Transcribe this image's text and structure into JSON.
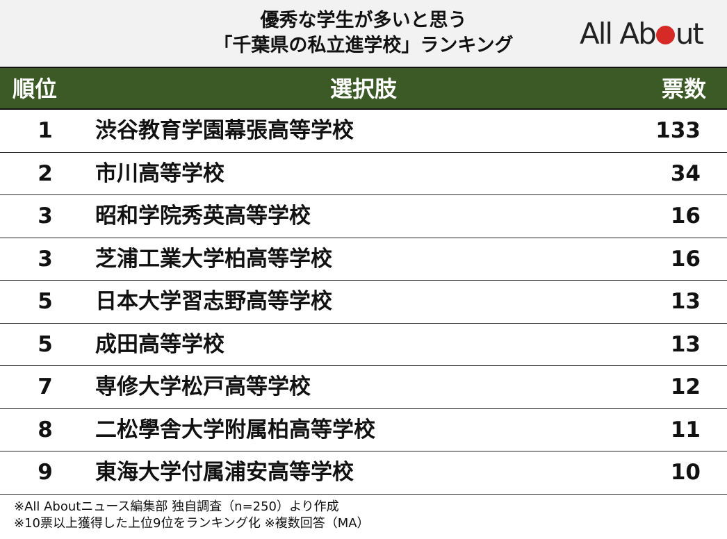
{
  "title": {
    "line1": "優秀な学生が多いと思う",
    "line2": "「千葉県の私立進学校」ランキング"
  },
  "logo": {
    "text_before": "All Ab",
    "text_after": "ut",
    "accent": "#d62a26"
  },
  "colors": {
    "header_bg": "#3b5a25",
    "title_bg": "#f2f2f2"
  },
  "chart_data": {
    "type": "table",
    "columns": [
      "順位",
      "選択肢",
      "票数"
    ],
    "rows": [
      {
        "rank": "1",
        "name": "渋谷教育学園幕張高等学校",
        "votes": 133
      },
      {
        "rank": "2",
        "name": "市川高等学校",
        "votes": 34
      },
      {
        "rank": "3",
        "name": "昭和学院秀英高等学校",
        "votes": 16
      },
      {
        "rank": "3",
        "name": "芝浦工業大学柏高等学校",
        "votes": 16
      },
      {
        "rank": "5",
        "name": "日本大学習志野高等学校",
        "votes": 13
      },
      {
        "rank": "5",
        "name": "成田高等学校",
        "votes": 13
      },
      {
        "rank": "7",
        "name": "専修大学松戸高等学校",
        "votes": 12
      },
      {
        "rank": "8",
        "name": "二松學舎大学附属柏高等学校",
        "votes": 11
      },
      {
        "rank": "9",
        "name": "東海大学付属浦安高等学校",
        "votes": 10
      }
    ]
  },
  "notes": [
    "※All Aboutニュース編集部 独自調査（n=250）より作成",
    "※10票以上獲得した上位9位をランキング化 ※複数回答（MA）"
  ]
}
